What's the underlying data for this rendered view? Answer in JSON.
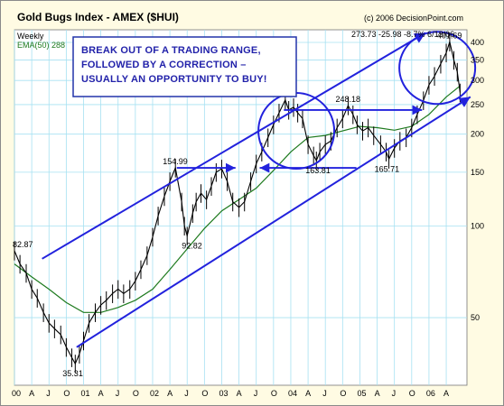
{
  "header": {
    "title": "Gold Bugs Index - AMEX ($HUI)",
    "copyright": "(c) 2006 DecisionPoint.com",
    "interval": "Weekly",
    "ema_label": "EMA(50) 288",
    "last_stats": "273.73 -25.98 -8.7% 6/13/06"
  },
  "annotation": {
    "lines": [
      "BREAK OUT OF A TRADING RANGE,",
      "FOLLOWED BY A CORRECTION –",
      "USUALLY AN OPPORTUNITY TO BUY!"
    ]
  },
  "colors": {
    "background": "#fffbe3",
    "plot_background": "#ffffff",
    "grid": "#a6e1f2",
    "price": "#000000",
    "ema": "#1e7a1e",
    "annotation": "#2222dd"
  },
  "chart_data": {
    "type": "line",
    "title": "Gold Bugs Index - AMEX ($HUI)",
    "scale": "log",
    "ylim": [
      30,
      440
    ],
    "xlim": [
      2000.0,
      2006.55
    ],
    "grid": true,
    "y_ticks": [
      50,
      100,
      150,
      200,
      250,
      300,
      350,
      400
    ],
    "x_ticks": [
      {
        "t": 2000.0,
        "label": "00"
      },
      {
        "t": 2000.25,
        "label": "A"
      },
      {
        "t": 2000.5,
        "label": "J"
      },
      {
        "t": 2000.75,
        "label": "O"
      },
      {
        "t": 2001.0,
        "label": "01"
      },
      {
        "t": 2001.25,
        "label": "A"
      },
      {
        "t": 2001.5,
        "label": "J"
      },
      {
        "t": 2001.75,
        "label": "O"
      },
      {
        "t": 2002.0,
        "label": "02"
      },
      {
        "t": 2002.25,
        "label": "A"
      },
      {
        "t": 2002.5,
        "label": "J"
      },
      {
        "t": 2002.75,
        "label": "O"
      },
      {
        "t": 2003.0,
        "label": "03"
      },
      {
        "t": 2003.25,
        "label": "A"
      },
      {
        "t": 2003.5,
        "label": "J"
      },
      {
        "t": 2003.75,
        "label": "O"
      },
      {
        "t": 2004.0,
        "label": "04"
      },
      {
        "t": 2004.25,
        "label": "A"
      },
      {
        "t": 2004.5,
        "label": "J"
      },
      {
        "t": 2004.75,
        "label": "O"
      },
      {
        "t": 2005.0,
        "label": "05"
      },
      {
        "t": 2005.25,
        "label": "A"
      },
      {
        "t": 2005.5,
        "label": "J"
      },
      {
        "t": 2005.75,
        "label": "O"
      },
      {
        "t": 2006.0,
        "label": "06"
      },
      {
        "t": 2006.25,
        "label": "A"
      }
    ],
    "series": [
      {
        "name": "$HUI",
        "x": [
          2000.0,
          2000.08,
          2000.17,
          2000.25,
          2000.33,
          2000.42,
          2000.5,
          2000.58,
          2000.67,
          2000.75,
          2000.83,
          2000.88,
          2000.94,
          2001.0,
          2001.08,
          2001.17,
          2001.25,
          2001.33,
          2001.42,
          2001.5,
          2001.58,
          2001.67,
          2001.75,
          2001.83,
          2001.92,
          2002.0,
          2002.08,
          2002.17,
          2002.25,
          2002.33,
          2002.42,
          2002.46,
          2002.5,
          2002.58,
          2002.63,
          2002.7,
          2002.78,
          2002.85,
          2002.92,
          2003.0,
          2003.08,
          2003.16,
          2003.25,
          2003.33,
          2003.42,
          2003.5,
          2003.58,
          2003.67,
          2003.75,
          2003.83,
          2003.92,
          2003.97,
          2004.04,
          2004.1,
          2004.17,
          2004.25,
          2004.33,
          2004.37,
          2004.42,
          2004.5,
          2004.58,
          2004.67,
          2004.75,
          2004.83,
          2004.9,
          2004.96,
          2005.04,
          2005.12,
          2005.2,
          2005.3,
          2005.38,
          2005.42,
          2005.5,
          2005.58,
          2005.67,
          2005.75,
          2005.83,
          2005.92,
          2006.0,
          2006.08,
          2006.17,
          2006.25,
          2006.3,
          2006.36,
          2006.41,
          2006.45
        ],
        "values": [
          82.87,
          75,
          70,
          62,
          58,
          52,
          48,
          46,
          44,
          40,
          37,
          35.31,
          38,
          42,
          48,
          52,
          55,
          57,
          60,
          62,
          60,
          62,
          66,
          72,
          80,
          92,
          108,
          125,
          140,
          154.99,
          120,
          100,
          92.82,
          110,
          120,
          128,
          122,
          135,
          150,
          154,
          140,
          120,
          115,
          120,
          140,
          160,
          175,
          195,
          215,
          235,
          258.96,
          240,
          245,
          235,
          225,
          185,
          170,
          163.81,
          175,
          185,
          190,
          210,
          225,
          248.18,
          232,
          215,
          205,
          210,
          198,
          185,
          175,
          165.71,
          180,
          190,
          195,
          210,
          232,
          258,
          290,
          310,
          340,
          370,
          401.69,
          350,
          320,
          273.73
        ]
      },
      {
        "name": "EMA(50)",
        "x": [
          2000.0,
          2000.25,
          2000.5,
          2000.75,
          2001.0,
          2001.25,
          2001.5,
          2001.75,
          2002.0,
          2002.25,
          2002.5,
          2002.75,
          2003.0,
          2003.25,
          2003.5,
          2003.75,
          2004.0,
          2004.25,
          2004.5,
          2004.75,
          2005.0,
          2005.25,
          2005.5,
          2005.75,
          2006.0,
          2006.25,
          2006.45
        ],
        "values": [
          75,
          68,
          62,
          56,
          52,
          52,
          54,
          57,
          62,
          72,
          84,
          98,
          112,
          122,
          133,
          152,
          175,
          195,
          198,
          205,
          212,
          210,
          206,
          212,
          232,
          265,
          288
        ]
      }
    ],
    "labels": [
      {
        "t": 2000.0,
        "v": 82.87,
        "text": "82.87",
        "dx": -2,
        "dy": -4
      },
      {
        "t": 2000.88,
        "v": 35.31,
        "text": "35.31",
        "dx": -14,
        "dy": 14
      },
      {
        "t": 2002.33,
        "v": 154.99,
        "text": "154.99",
        "dx": -14,
        "dy": -4
      },
      {
        "t": 2002.5,
        "v": 92.82,
        "text": "92.82",
        "dx": -6,
        "dy": 14
      },
      {
        "t": 2003.92,
        "v": 258.96,
        "text": "258.96",
        "dx": -16,
        "dy": -4
      },
      {
        "t": 2004.37,
        "v": 163.81,
        "text": "163.81",
        "dx": -12,
        "dy": 14
      },
      {
        "t": 2004.83,
        "v": 248.18,
        "text": "248.18",
        "dx": -14,
        "dy": -4
      },
      {
        "t": 2005.42,
        "v": 165.71,
        "text": "165.71",
        "dx": -16,
        "dy": 14
      },
      {
        "t": 2006.3,
        "v": 401.69,
        "text": "401.69",
        "dx": -14,
        "dy": -4
      }
    ],
    "drawings": {
      "upper_channel": [
        {
          "t": 2000.4,
          "v": 78
        },
        {
          "t": 2005.95,
          "v": 430
        }
      ],
      "lower_channel": [
        {
          "t": 2000.9,
          "v": 40
        },
        {
          "t": 2006.6,
          "v": 265
        }
      ],
      "breakout_arrows": [
        [
          {
            "t": 2002.35,
            "v": 154.99
          },
          {
            "t": 2003.2,
            "v": 154.99
          }
        ],
        [
          {
            "t": 2003.9,
            "v": 240
          },
          {
            "t": 2005.9,
            "v": 240
          }
        ],
        [
          {
            "t": 2004.95,
            "v": 155
          },
          {
            "t": 2003.55,
            "v": 155
          }
        ]
      ],
      "circles": [
        {
          "t": 2004.08,
          "v": 205,
          "rx": 42,
          "ry": 42
        },
        {
          "t": 2006.12,
          "v": 330,
          "rx": 42,
          "ry": 40
        }
      ]
    }
  }
}
